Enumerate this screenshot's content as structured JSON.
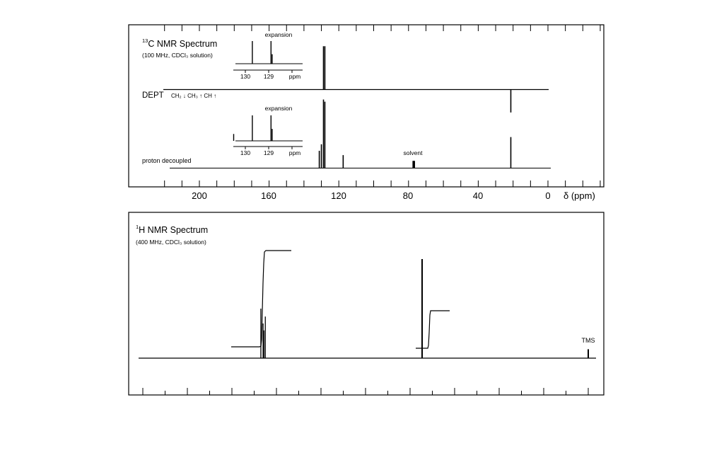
{
  "chart_data": [
    {
      "type": "line",
      "title": "C NMR Spectrum",
      "title_superscript": "13",
      "subtitle": "(100 MHz, CDCl₃ solution)",
      "xlabel": "δ (ppm)",
      "xlim": [
        220,
        0
      ],
      "x_ticks": [
        200,
        160,
        120,
        80,
        40,
        0
      ],
      "dept": {
        "label": "DEPT",
        "legend": "CH₂ ↓ CH₃ ↑ CH ↑",
        "peaks": [
          {
            "x": 128.8,
            "y": 0.85
          },
          {
            "x": 128.0,
            "y": 0.85
          },
          {
            "x": 21.3,
            "y": -0.45
          }
        ]
      },
      "decoupled": {
        "label": "proton decoupled",
        "peaks": [
          {
            "x": 131.2,
            "y": 0.24
          },
          {
            "x": 130.0,
            "y": 0.33
          },
          {
            "x": 128.8,
            "y": 0.95
          },
          {
            "x": 128.0,
            "y": 0.92
          },
          {
            "x": 117.5,
            "y": 0.18
          },
          {
            "x": 77.4,
            "y": 0.1
          },
          {
            "x": 77.0,
            "y": 0.1
          },
          {
            "x": 76.6,
            "y": 0.1
          },
          {
            "x": 21.3,
            "y": 0.43
          }
        ],
        "annotations": [
          {
            "label": "solvent",
            "x": 77
          }
        ]
      },
      "expansions": [
        {
          "label": "expansion",
          "x_ticks": [
            "130",
            "129",
            "ppm"
          ],
          "peaks": [
            {
              "x": 129.7,
              "y": 1.0
            },
            {
              "x": 128.9,
              "y": 1.0
            },
            {
              "x": 128.85,
              "y": 0.42
            }
          ]
        },
        {
          "label": "expansion",
          "x_ticks": [
            "130",
            "129",
            "ppm"
          ],
          "peaks": [
            {
              "x": 130.5,
              "y": 0.27
            },
            {
              "x": 129.7,
              "y": 1.0
            },
            {
              "x": 128.9,
              "y": 1.0
            },
            {
              "x": 128.85,
              "y": 0.47
            }
          ]
        }
      ]
    },
    {
      "type": "line",
      "title": "H NMR Spectrum",
      "title_superscript": "1",
      "subtitle": "(400 MHz, CDCl₃ solution)",
      "xlim": [
        10,
        0
      ],
      "peaks": [
        {
          "x": 7.35,
          "y": 0.5
        },
        {
          "x": 7.3,
          "y": 0.35
        },
        {
          "x": 7.28,
          "y": 0.28
        },
        {
          "x": 7.25,
          "y": 0.42
        },
        {
          "x": 3.73,
          "y": 1.0
        },
        {
          "x": 0.0,
          "y": 0.09
        }
      ],
      "integrals": [
        {
          "from": 7.65,
          "to": 6.8,
          "value": 5
        },
        {
          "from": 4.05,
          "to": 3.45,
          "value": 2
        }
      ],
      "annotations": [
        {
          "label": "TMS",
          "x": 0
        }
      ]
    }
  ]
}
